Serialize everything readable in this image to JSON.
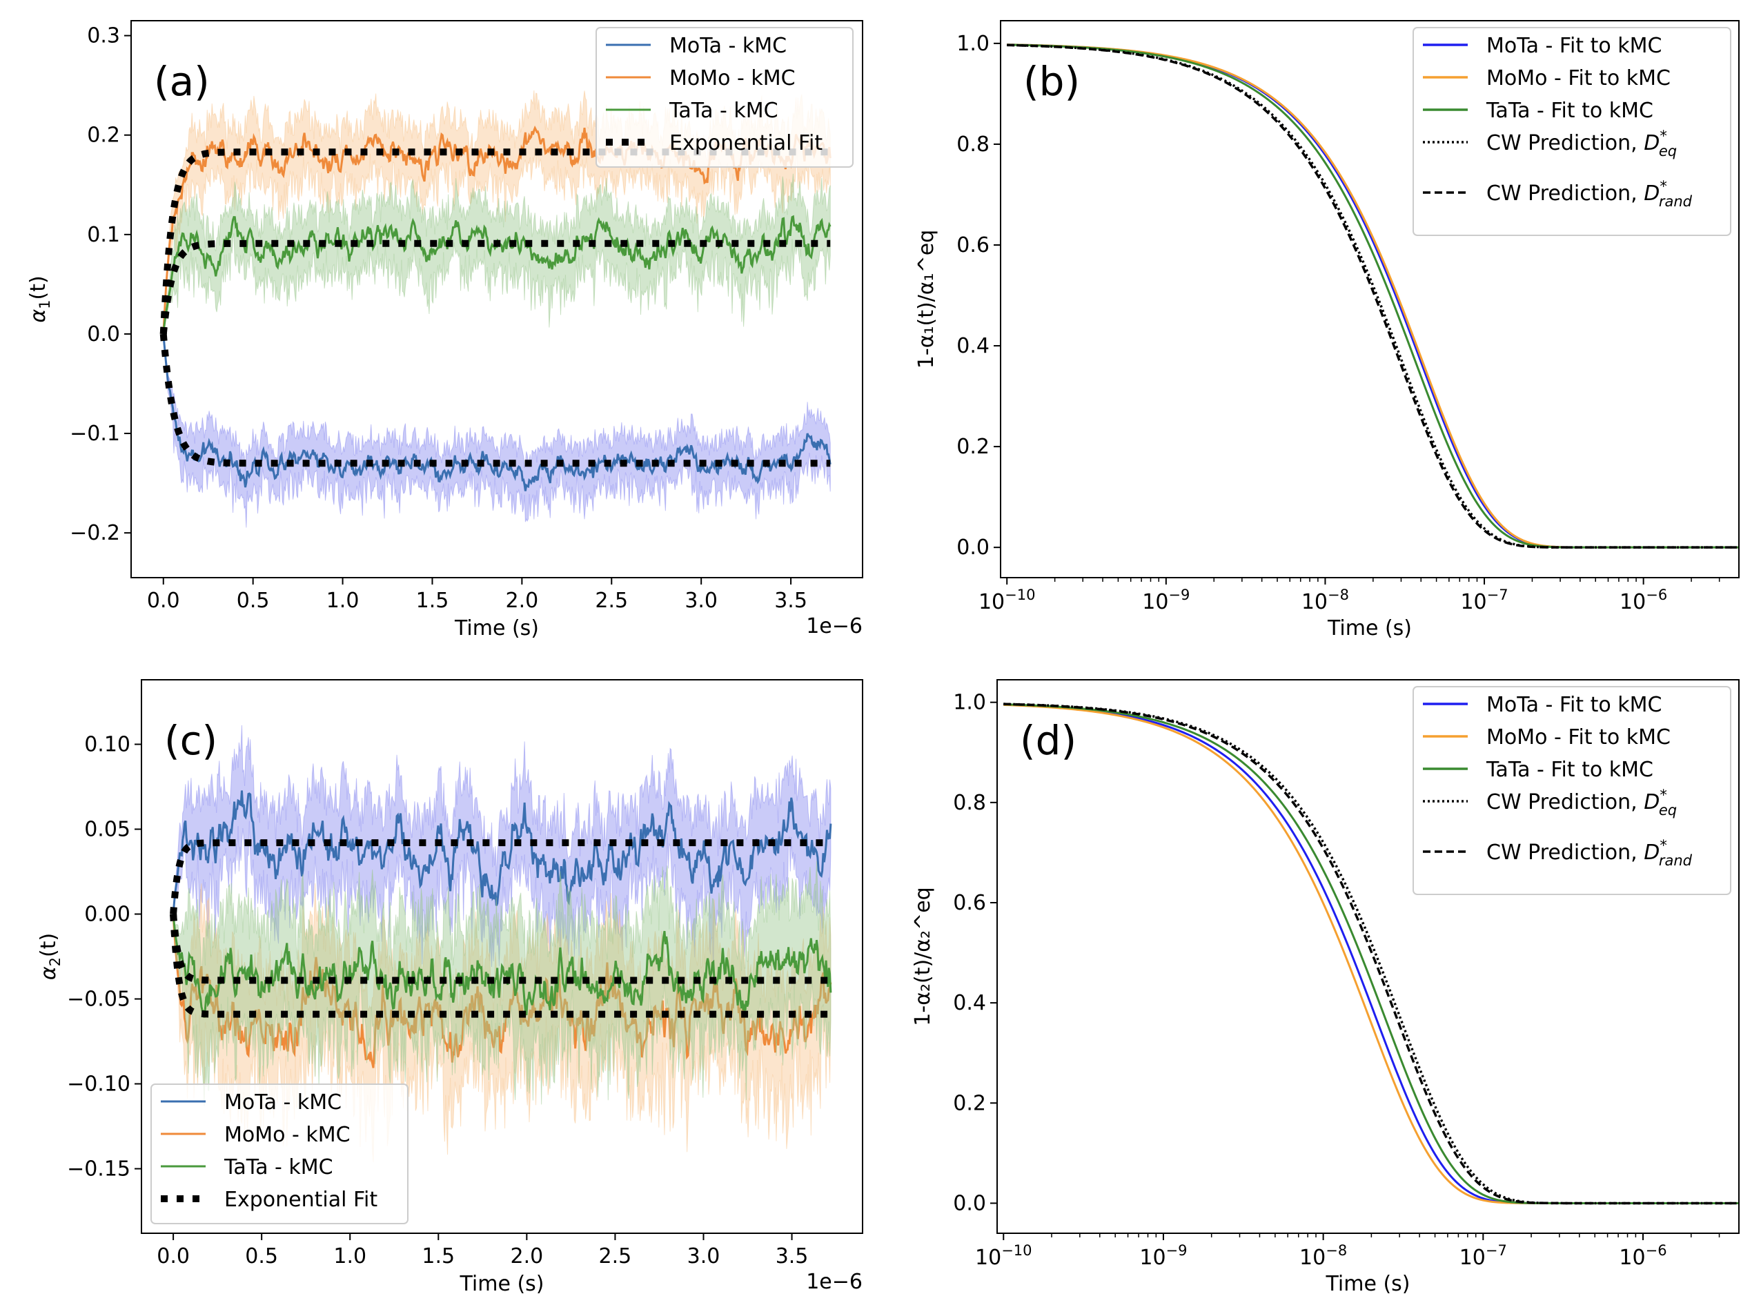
{
  "chart_data": [
    {
      "id": "a",
      "type": "line",
      "panel_label": "(a)",
      "xlabel": "Time (s)",
      "ylabel_base": "α",
      "ylabel_sub": "1",
      "ylabel_tail": "(t)",
      "x_offset_text": "1e−6",
      "xscale": "linear",
      "xlim": [
        -0.18,
        3.9
      ],
      "ylim": [
        -0.245,
        0.315
      ],
      "xticks": [
        0,
        0.5,
        1.0,
        1.5,
        2.0,
        2.5,
        3.0,
        3.5
      ],
      "xtick_labels": [
        "0.0",
        "0.5",
        "1.0",
        "1.5",
        "2.0",
        "2.5",
        "3.0",
        "3.5"
      ],
      "yticks": [
        -0.2,
        -0.1,
        0.0,
        0.1,
        0.2,
        0.3
      ],
      "ytick_labels": [
        "−0.2",
        "−0.1",
        "0.0",
        "0.1",
        "0.2",
        "0.3"
      ],
      "grid": false,
      "legend_position": "top-right",
      "legend": [
        "MoTa - kMC",
        "MoMo - kMC",
        "TaTa - kMC",
        "Exponential Fit"
      ],
      "series": [
        {
          "name": "MoTa - kMC",
          "color": "#3a6fb0",
          "band_color": "#8a8cf0",
          "eq": -0.13,
          "tau": 0.06,
          "noise": 0.012,
          "band": 0.025
        },
        {
          "name": "MoMo - kMC",
          "color": "#ef8a3a",
          "band_color": "#f8c690",
          "eq": 0.183,
          "tau": 0.05,
          "noise": 0.015,
          "band": 0.03
        },
        {
          "name": "TaTa - kMC",
          "color": "#4a9a3c",
          "band_color": "#9cc890",
          "eq": 0.091,
          "tau": 0.05,
          "noise": 0.014,
          "band": 0.032
        }
      ],
      "fit": {
        "name": "Exponential Fit",
        "x_end": 3.72,
        "eqs": [
          -0.13,
          0.183,
          0.091
        ],
        "taus": [
          0.06,
          0.05,
          0.05
        ]
      }
    },
    {
      "id": "b",
      "type": "line",
      "panel_label": "(b)",
      "xlabel": "Time (s)",
      "ylabel_text": "1-α₁(t)/α₁^eq",
      "xscale": "log",
      "xlim_exp": [
        -10.04,
        -5.4
      ],
      "ylim": [
        -0.06,
        1.045
      ],
      "xtick_exps": [
        -10,
        -9,
        -8,
        -7,
        -6
      ],
      "xtick_labels": [
        "10",
        "10",
        "10",
        "10",
        "10"
      ],
      "xtick_sups": [
        "−10",
        "−9",
        "−8",
        "−7",
        "−6"
      ],
      "yticks": [
        0.0,
        0.2,
        0.4,
        0.6,
        0.8,
        1.0
      ],
      "ytick_labels": [
        "0.0",
        "0.2",
        "0.4",
        "0.6",
        "0.8",
        "1.0"
      ],
      "grid": false,
      "legend_position": "top-right",
      "legend": [
        "MoTa - Fit to kMC",
        "MoMo - Fit to kMC",
        "TaTa - Fit to kMC",
        "CW Prediction, D*eq",
        "CW Prediction, D*rand"
      ],
      "series": [
        {
          "name": "MoTa - Fit to kMC",
          "color": "#1f1ff0",
          "tau": 4e-08,
          "dash": ""
        },
        {
          "name": "MoMo - Fit to kMC",
          "color": "#f5a030",
          "tau": 4.1e-08,
          "dash": ""
        },
        {
          "name": "TaTa - Fit to kMC",
          "color": "#3a8a30",
          "tau": 3.7e-08,
          "dash": ""
        },
        {
          "name": "CW Prediction, D*eq",
          "color": "#000000",
          "tau": 3.05e-08,
          "dash": "3,4"
        },
        {
          "name": "CW Prediction, D*rand",
          "color": "#000000",
          "tau": 2.95e-08,
          "dash": "11,6"
        }
      ],
      "x_end": 4e-06
    },
    {
      "id": "c",
      "type": "line",
      "panel_label": "(c)",
      "xlabel": "Time (s)",
      "ylabel_base": "α",
      "ylabel_sub": "2",
      "ylabel_tail": "(t)",
      "x_offset_text": "1e−6",
      "xscale": "linear",
      "xlim": [
        -0.18,
        3.9
      ],
      "ylim": [
        -0.188,
        0.138
      ],
      "xticks": [
        0,
        0.5,
        1.0,
        1.5,
        2.0,
        2.5,
        3.0,
        3.5
      ],
      "xtick_labels": [
        "0.0",
        "0.5",
        "1.0",
        "1.5",
        "2.0",
        "2.5",
        "3.0",
        "3.5"
      ],
      "yticks": [
        -0.15,
        -0.1,
        -0.05,
        0.0,
        0.05,
        0.1
      ],
      "ytick_labels": [
        "−0.15",
        "−0.10",
        "−0.05",
        "0.00",
        "0.05",
        "0.10"
      ],
      "grid": false,
      "legend_position": "bottom-left",
      "legend": [
        "MoTa - kMC",
        "MoMo - kMC",
        "TaTa - kMC",
        "Exponential Fit"
      ],
      "series": [
        {
          "name": "MoTa - kMC",
          "color": "#3a6fb0",
          "band_color": "#8a8cf0",
          "eq": 0.042,
          "tau": 0.03,
          "noise": 0.014,
          "band": 0.028
        },
        {
          "name": "MoMo - kMC",
          "color": "#ef8a3a",
          "band_color": "#f8c690",
          "eq": -0.059,
          "tau": 0.03,
          "noise": 0.016,
          "band": 0.035
        },
        {
          "name": "TaTa - kMC",
          "color": "#4a9a3c",
          "band_color": "#9cc890",
          "eq": -0.039,
          "tau": 0.03,
          "noise": 0.014,
          "band": 0.035
        }
      ],
      "fit": {
        "name": "Exponential Fit",
        "x_end": 3.72,
        "eqs": [
          0.042,
          -0.059,
          -0.039
        ],
        "taus": [
          0.03,
          0.03,
          0.03
        ]
      }
    },
    {
      "id": "d",
      "type": "line",
      "panel_label": "(d)",
      "xlabel": "Time (s)",
      "ylabel_text": "1-α₂(t)/α₂^eq",
      "xscale": "log",
      "xlim_exp": [
        -10.04,
        -5.4
      ],
      "ylim": [
        -0.06,
        1.045
      ],
      "xtick_exps": [
        -10,
        -9,
        -8,
        -7,
        -6
      ],
      "xtick_labels": [
        "10",
        "10",
        "10",
        "10",
        "10"
      ],
      "xtick_sups": [
        "−10",
        "−9",
        "−8",
        "−7",
        "−6"
      ],
      "yticks": [
        0.0,
        0.2,
        0.4,
        0.6,
        0.8,
        1.0
      ],
      "ytick_labels": [
        "0.0",
        "0.2",
        "0.4",
        "0.6",
        "0.8",
        "1.0"
      ],
      "grid": false,
      "legend_position": "top-right",
      "legend": [
        "MoTa - Fit to kMC",
        "MoMo - Fit to kMC",
        "TaTa - Fit to kMC",
        "CW Prediction, D*eq",
        "CW Prediction, D*rand"
      ],
      "series": [
        {
          "name": "MoTa - Fit to kMC",
          "color": "#1f1ff0",
          "tau": 2.15e-08,
          "dash": ""
        },
        {
          "name": "MoMo - Fit to kMC",
          "color": "#f5a030",
          "tau": 1.95e-08,
          "dash": ""
        },
        {
          "name": "TaTa - Fit to kMC",
          "color": "#3a8a30",
          "tau": 2.45e-08,
          "dash": ""
        },
        {
          "name": "CW Prediction, D*eq",
          "color": "#000000",
          "tau": 3.05e-08,
          "dash": "3,4"
        },
        {
          "name": "CW Prediction, D*rand",
          "color": "#000000",
          "tau": 2.9e-08,
          "dash": "11,6"
        }
      ],
      "x_end": 4e-06
    }
  ]
}
